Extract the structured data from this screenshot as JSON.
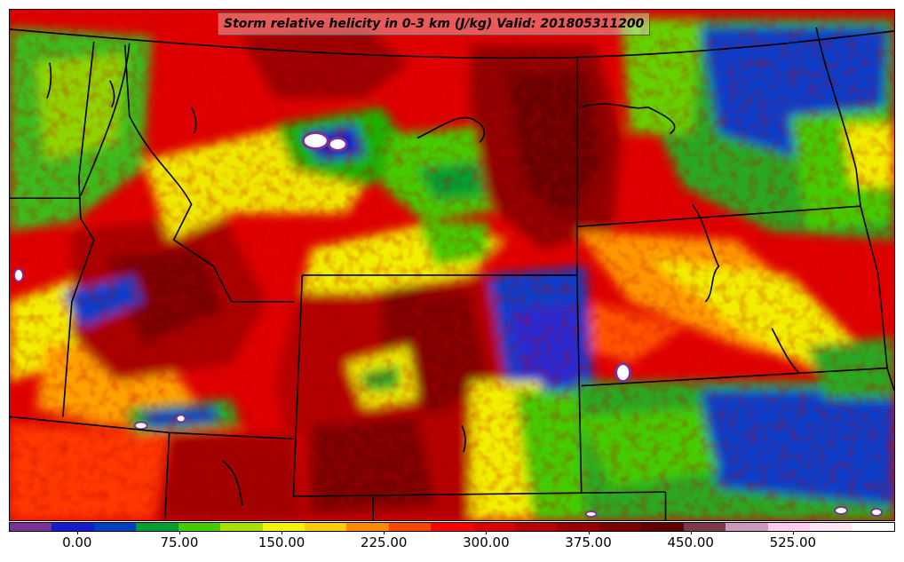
{
  "map": {
    "title": "Storm relative helicity in 0-3 km (J/kg) Valid: 201805311200",
    "projection": "lambert-conformal",
    "region": "northern-central-us",
    "field": "storm-relative-helicity-0-3km",
    "units": "J/kg",
    "valid_time": "201805311200",
    "colors": {
      "frame": "#000000",
      "state_lines": "#000000",
      "water_outline": "#000000"
    },
    "colorbar": {
      "colors": [
        "#7b3294",
        "#1a1acd",
        "#0040c0",
        "#00a030",
        "#44cc00",
        "#a8e000",
        "#f4f400",
        "#ffcc00",
        "#ff8800",
        "#ff4400",
        "#ff0000",
        "#dd0000",
        "#bb0000",
        "#990000",
        "#7a0000",
        "#600000",
        "#7a3a4a",
        "#cc99bb",
        "#ffccee",
        "#ffe6f2",
        "#ffffff"
      ],
      "ticks": [
        {
          "label": "0.00",
          "value": 0
        },
        {
          "label": "75.00",
          "value": 75
        },
        {
          "label": "150.00",
          "value": 150
        },
        {
          "label": "225.00",
          "value": 225
        },
        {
          "label": "300.00",
          "value": 300
        },
        {
          "label": "375.00",
          "value": 375
        },
        {
          "label": "450.00",
          "value": 450
        },
        {
          "label": "525.00",
          "value": 525
        }
      ],
      "min": -50,
      "max": 600
    }
  }
}
